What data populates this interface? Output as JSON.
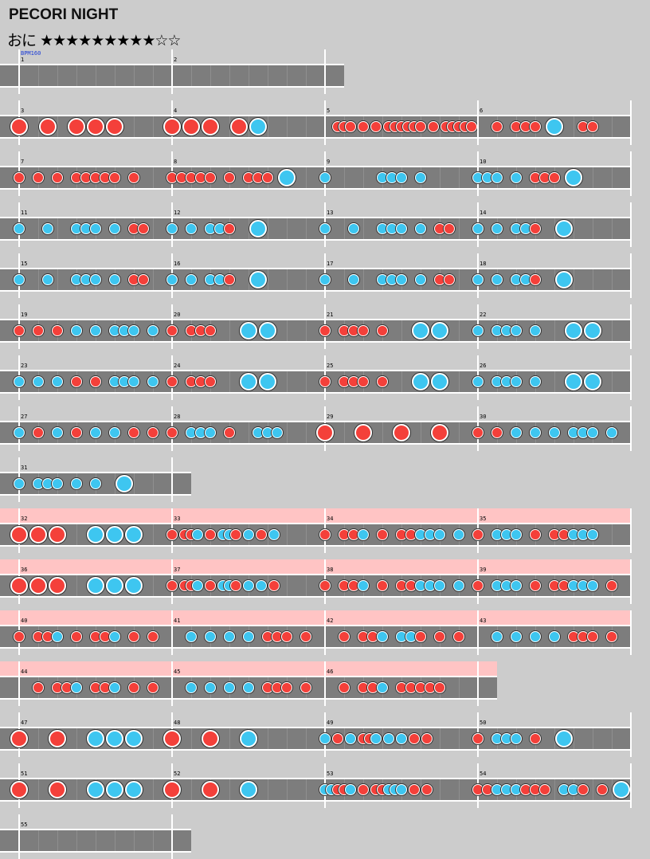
{
  "song": {
    "title": "PECORI NIGHT",
    "difficulty_label": "おに",
    "stars_filled": "★★★★★★★★★",
    "stars_empty": "☆☆",
    "level": 9,
    "max_level": 11
  },
  "bpm_label": "BPM160",
  "colors": {
    "don": "#f4403a",
    "ka": "#3ec6f0",
    "lane": "#7d7d7d",
    "gogo": "#ffc4c4",
    "background": "#cccccc"
  },
  "chart_rows": [
    {
      "measures": [
        {
          "num": "1",
          "notes": ""
        },
        {
          "num": "2",
          "notes": ""
        }
      ]
    },
    {
      "measures": [
        {
          "num": "3",
          "notes": "D..D..D.D.D."
        },
        {
          "num": "4",
          "notes": "D.D.D..D.K.."
        },
        {
          "num": "5",
          "notes": "..ddd.d.d.dddddd.d.ddddd"
        },
        {
          "num": "6",
          "notes": "..d.ddd.K..dd"
        }
      ]
    },
    {
      "measures": [
        {
          "num": "7",
          "notes": "d.d.d.ddddd.d."
        },
        {
          "num": "8",
          "notes": "ddddd.d.ddd.K.."
        },
        {
          "num": "9",
          "notes": "k.....kkk.k"
        },
        {
          "num": "10",
          "notes": "kkk.k.ddd.K"
        }
      ]
    },
    {
      "measures": [
        {
          "num": "11",
          "notes": "k..k..kkk.k.dd"
        },
        {
          "num": "12",
          "notes": "k.k.kkd..K.."
        },
        {
          "num": "13",
          "notes": "k..k..kkk.k.dd"
        },
        {
          "num": "14",
          "notes": "k.k.kkd..K.."
        }
      ]
    },
    {
      "measures": [
        {
          "num": "15",
          "notes": "k..k..kkk.k.dd"
        },
        {
          "num": "16",
          "notes": "k.k.kkd..K.."
        },
        {
          "num": "17",
          "notes": "k..k..kkk.k.dd"
        },
        {
          "num": "18",
          "notes": "k.k.kkd..K.."
        }
      ]
    },
    {
      "measures": [
        {
          "num": "19",
          "notes": "d.d.d.k.k.kkk.k."
        },
        {
          "num": "20",
          "notes": "d.ddd...K.K."
        },
        {
          "num": "21",
          "notes": "d.ddd.d...K.K."
        },
        {
          "num": "22",
          "notes": "k.kkk.k...K.K."
        }
      ]
    },
    {
      "measures": [
        {
          "num": "23",
          "notes": "k.k.k.d.d.kkk.k."
        },
        {
          "num": "24",
          "notes": "d.ddd...K.K."
        },
        {
          "num": "25",
          "notes": "d.ddd.d...K.K."
        },
        {
          "num": "26",
          "notes": "k.kkk.k...K.K."
        }
      ]
    },
    {
      "measures": [
        {
          "num": "27",
          "notes": "k.d.k.d.k.k.d.d."
        },
        {
          "num": "28",
          "notes": "d.kkk.d..kkk"
        },
        {
          "num": "29",
          "notes": "D...D...D...D"
        },
        {
          "num": "30",
          "notes": "d.d.k.k.k.kkk.k"
        }
      ]
    },
    {
      "measures": [
        {
          "num": "31",
          "notes": "k.kkk.k.k..K"
        }
      ]
    },
    {
      "gogo": true,
      "measures": [
        {
          "num": "32",
          "notes": "D.D.D...K.K.K"
        },
        {
          "num": "33",
          "notes": "d.ddk.d.kkd.k.d.k"
        },
        {
          "num": "34",
          "notes": "d.ddk.d.ddkkk.k"
        },
        {
          "num": "35",
          "notes": "d.kkk.d.ddkkk"
        }
      ]
    },
    {
      "gogo": true,
      "measures": [
        {
          "num": "36",
          "notes": "D.D.D...K.K.K"
        },
        {
          "num": "37",
          "notes": "d.ddk.d.kkd.k.k.d"
        },
        {
          "num": "38",
          "notes": "d.ddk.d.ddkkk.k"
        },
        {
          "num": "39",
          "notes": "d.kkk.d.ddkkk.d"
        }
      ]
    },
    {
      "gogo": true,
      "measures": [
        {
          "num": "40",
          "notes": "d.ddk.d.ddk.d.d"
        },
        {
          "num": "41",
          "notes": "..k.k.k.k.ddd.d"
        },
        {
          "num": "42",
          "notes": "..d.ddk.kkd.d.d"
        },
        {
          "num": "43",
          "notes": "..k.k.k.k.ddd.d"
        }
      ]
    },
    {
      "gogo": true,
      "measures": [
        {
          "num": "44",
          "notes": "..d.ddk.ddk.d.d"
        },
        {
          "num": "45",
          "notes": "..k.k.k.k.ddd.d"
        },
        {
          "num": "46",
          "notes": "..d.ddk.ddddd"
        }
      ]
    },
    {
      "measures": [
        {
          "num": "47",
          "notes": "D...D...K.K.K"
        },
        {
          "num": "48",
          "notes": "D...D...K"
        },
        {
          "num": "49",
          "notes": "k.d.k.ddk.k.k.d.d."
        },
        {
          "num": "50",
          "notes": "d.kkk.d..K"
        }
      ]
    },
    {
      "measures": [
        {
          "num": "51",
          "notes": "D...D...K.K.K"
        },
        {
          "num": "52",
          "notes": "D...D...K"
        },
        {
          "num": "53",
          "notes": "kkddk.d.ddkkk.d.d."
        },
        {
          "num": "54",
          "notes": "ddkkkddd.kkd.d.K"
        }
      ]
    },
    {
      "measures": [
        {
          "num": "55",
          "notes": ""
        }
      ]
    }
  ]
}
